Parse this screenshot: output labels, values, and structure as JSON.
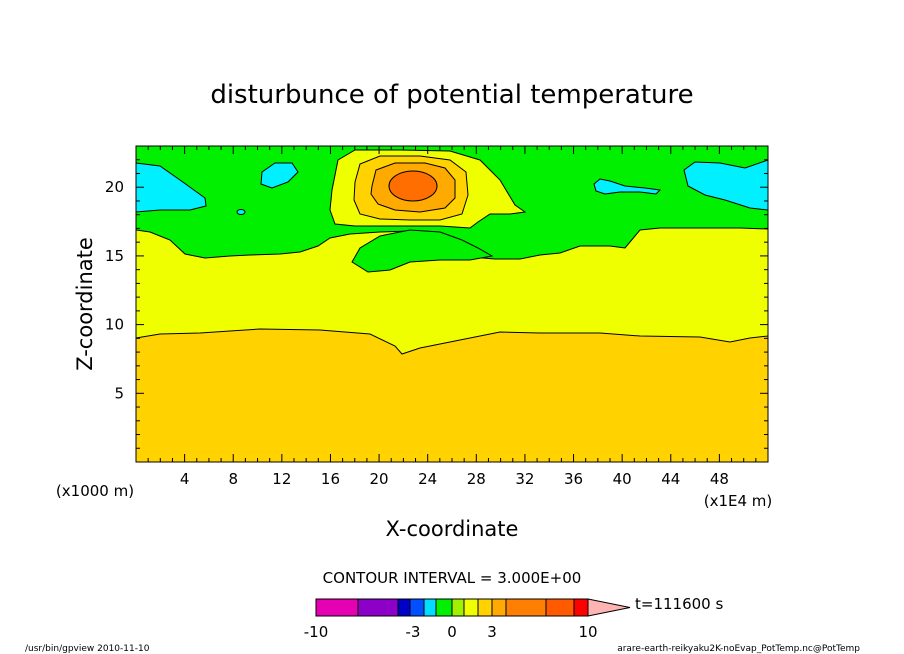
{
  "chart_data": {
    "type": "heatmap",
    "title": "disturbunce of potential temperature",
    "xlabel": "X-coordinate",
    "ylabel": "Z-coordinate",
    "x_range": [
      0,
      52
    ],
    "y_range": [
      0,
      23
    ],
    "x_ticks": [
      "4",
      "8",
      "12",
      "16",
      "20",
      "24",
      "28",
      "32",
      "36",
      "40",
      "44",
      "48"
    ],
    "x_tick_values": [
      4,
      8,
      12,
      16,
      20,
      24,
      28,
      32,
      36,
      40,
      44,
      48
    ],
    "y_ticks": [
      "5",
      "10",
      "15",
      "20"
    ],
    "y_tick_values": [
      5,
      10,
      15,
      20
    ],
    "x_unit_left": "(x1000 m)",
    "x_unit_right": "(x1E4 m)",
    "contour_interval": "CONTOUR INTERVAL = 3.000E+00",
    "time_label": "t=111600 s",
    "colorbar_labels": [
      "-10",
      "-3",
      "0",
      "3",
      "10"
    ],
    "colorbar_label_values": [
      -10,
      -3,
      0,
      3,
      10
    ],
    "colorbar_colors": [
      "#e600b4",
      "#8c00c8",
      "#0000c8",
      "#0050ff",
      "#00dcff",
      "#00f000",
      "#a0f000",
      "#f0ff00",
      "#ffd200",
      "#ffaa00",
      "#ff8000",
      "#ff5a00",
      "#ff0000",
      "#ff7070",
      "#ffb4b4"
    ],
    "colorbar_bounds": [
      -10,
      -7,
      -5,
      -4,
      -3,
      -2,
      -1,
      0,
      1,
      2,
      3,
      4,
      5,
      7,
      10
    ],
    "field_colors": {
      "lowest": "#00f0ff",
      "low": "#00f000",
      "mid": "#f0ff00",
      "base": "#ffd200",
      "warm": "#ffaa00",
      "hot": "#ff6e00"
    }
  },
  "footer": {
    "left": "/usr/bin/gpview   2010-11-10",
    "right": "arare-earth-reikyaku2K-noEvap_PotTemp.nc@PotTemp"
  }
}
